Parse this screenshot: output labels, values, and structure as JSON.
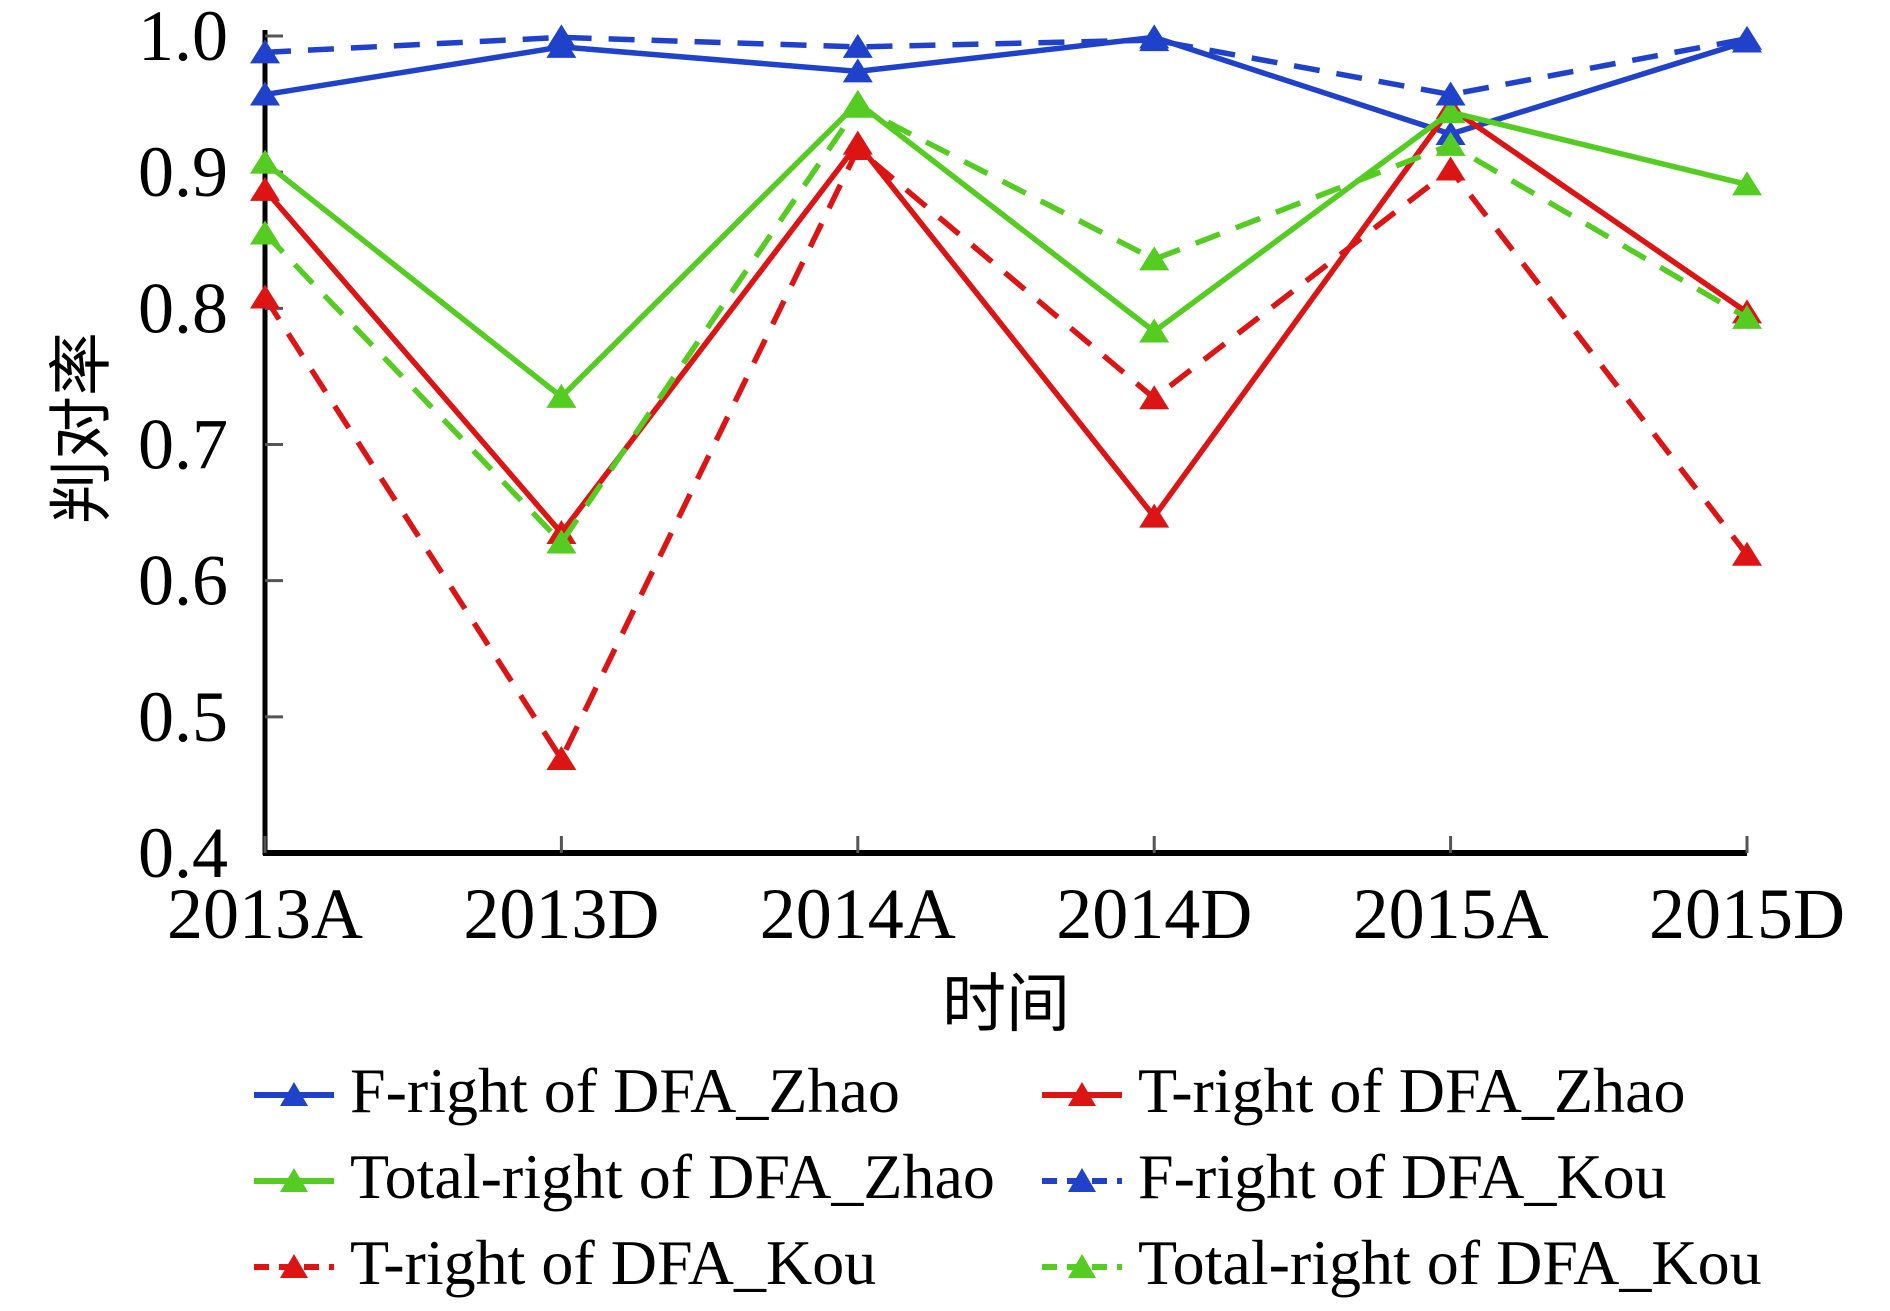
{
  "chart_data": {
    "type": "line",
    "title": "",
    "xlabel": "时间",
    "ylabel": "判对率",
    "categories": [
      "2013A",
      "2013D",
      "2014A",
      "2014D",
      "2015A",
      "2015D"
    ],
    "ylim": [
      0.4,
      1.0
    ],
    "yticks": [
      1.0,
      0.9,
      0.8,
      0.7,
      0.6,
      0.5,
      0.4
    ],
    "grid": false,
    "legend_position": "below-two-columns",
    "marker_shape": "triangle-up",
    "axis_color": "#000000",
    "series": [
      {
        "name": "F-right of DFA_Zhao",
        "color": "#2042cb",
        "style": "solid",
        "values": [
          0.957,
          0.992,
          0.974,
          0.999,
          0.928,
          0.996
        ]
      },
      {
        "name": "T-right of DFA_Zhao",
        "color": "#dd1414",
        "style": "solid",
        "values": [
          0.887,
          0.635,
          0.921,
          0.647,
          0.947,
          0.797
        ]
      },
      {
        "name": "Total-right of DFA_Zhao",
        "color": "#55cc22",
        "style": "solid",
        "values": [
          0.907,
          0.735,
          0.951,
          0.783,
          0.944,
          0.891
        ]
      },
      {
        "name": "F-right of DFA_Kou",
        "color": "#2042cb",
        "style": "dashed",
        "values": [
          0.988,
          0.999,
          0.992,
          0.997,
          0.957,
          0.998
        ]
      },
      {
        "name": "T-right of DFA_Kou",
        "color": "#dd1414",
        "style": "dashed",
        "values": [
          0.808,
          0.469,
          0.917,
          0.734,
          0.902,
          0.619
        ]
      },
      {
        "name": "Total-right of DFA_Kou",
        "color": "#55cc22",
        "style": "dashed",
        "values": [
          0.855,
          0.628,
          0.948,
          0.836,
          0.92,
          0.793
        ]
      }
    ],
    "legend_order": [
      "F-right of DFA_Zhao",
      "T-right of DFA_Zhao",
      "Total-right of DFA_Zhao",
      "F-right of DFA_Kou",
      "T-right of DFA_Kou",
      "Total-right of DFA_Kou"
    ]
  }
}
